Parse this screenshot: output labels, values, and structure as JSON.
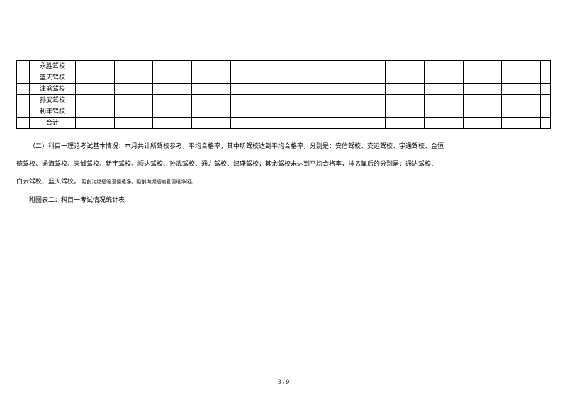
{
  "table": {
    "rows": [
      "永胜驾校",
      "蓝天驾校",
      "津盛驾校",
      "孙武驾校",
      "利丰驾校",
      "合计"
    ],
    "numDataCols": 14
  },
  "paragraphs": {
    "p1": "（二）科目一理论考试基本情况：本月共计所驾校参考，平均合格率，其中所驾校达到平均合格率，分别是：安信驾校、交运驾校、宇通驾校、金恒",
    "p2a": "德驾校、通海驾校、天诚驾校、新宇驾校、顺达驾校、孙武驾校、通力驾校、津盛驾校；其余驾校未达到平均合格率，排名靠后的分别是：通达驾校、",
    "p3a": "白云驾校、蓝天驾校。",
    "p3b": "阻剖沟燃蝠喻爱僵遣净。阻剖沟燃蝠喻爱僵遣净闲。",
    "p4": "附图表二：科目一考试情况统计表"
  },
  "pageNum": "3 / 9"
}
